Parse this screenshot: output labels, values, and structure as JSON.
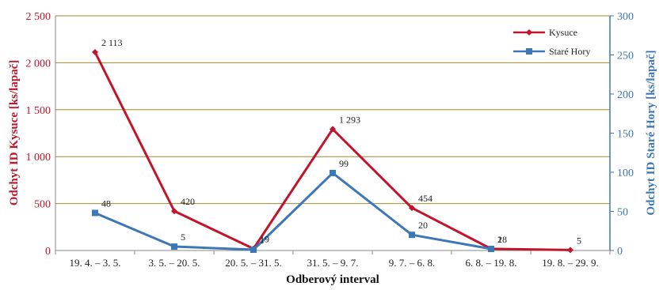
{
  "chart_data": {
    "type": "line",
    "categories": [
      "19. 4. – 3. 5.",
      "3. 5. – 20. 5.",
      "20. 5. – 31. 5.",
      "31. 5. – 9. 7.",
      "9. 7. – 6. 8.",
      "6. 8. – 19. 8.",
      "19. 8. – 29. 9."
    ],
    "series": [
      {
        "name": "Kysuce",
        "axis": "left",
        "color": "#c0152a",
        "marker": "diamond",
        "values": [
          2113,
          420,
          19,
          1293,
          454,
          18,
          5
        ],
        "labels": [
          "2 113",
          "420",
          "19",
          "1 293",
          "454",
          "18",
          "5"
        ]
      },
      {
        "name": "Staré Hory",
        "axis": "right",
        "color": "#3e77b8",
        "marker": "square",
        "values": [
          48,
          5,
          1,
          99,
          20,
          2,
          null
        ],
        "labels": [
          "48",
          "5",
          "1",
          "99",
          "20",
          "2",
          ""
        ]
      }
    ],
    "xlabel": "Odberový interval",
    "ylabel_left": "Odchyt ID Kysuce [ks/lapač]",
    "ylabel_right": "Odchyt ID Staré Hory [ks/lapač]",
    "ylim_left": [
      0,
      2500
    ],
    "ylim_right": [
      0,
      300
    ],
    "yticks_left": [
      "0",
      "500",
      "1 000",
      "1 500",
      "2 000",
      "2 500"
    ],
    "yticks_right": [
      "0",
      "50",
      "100",
      "150",
      "200",
      "250",
      "300"
    ],
    "grid": true,
    "grid_color": "#a08a2c",
    "legend_position": "top-right"
  }
}
